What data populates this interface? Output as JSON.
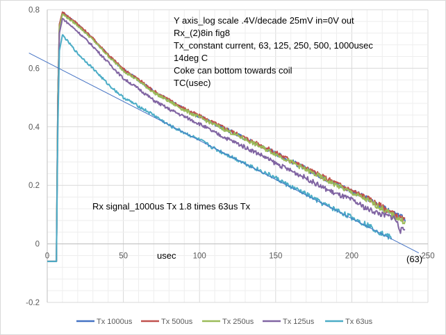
{
  "chart_data": {
    "type": "line",
    "title": "",
    "xlabel": "usec",
    "ylabel": "",
    "xlim": [
      0,
      250
    ],
    "ylim": [
      -0.2,
      0.8
    ],
    "x_ticks": [
      "0",
      "50",
      "100",
      "150",
      "200",
      "250"
    ],
    "x_tick_values": [
      0,
      50,
      100,
      150,
      200,
      250
    ],
    "y_ticks": [
      "-0.2",
      "0",
      "0.2",
      "0.4",
      "0.6",
      "0.8"
    ],
    "y_tick_values": [
      -0.2,
      0,
      0.2,
      0.4,
      0.6,
      0.8
    ],
    "grid": true,
    "legend_position": "bottom",
    "annotations": {
      "notes": [
        "Y axis_log scale .4V/decade 25mV in=0V out",
        "Rx_(2)8in fig8",
        "Tx_constant current, 63, 125, 250, 500, 1000usec",
        "14deg C",
        "Coke can bottom towards coil",
        "TC(usec)"
      ],
      "rx_note": "Rx signal_1000us Tx 1.8 times 63us Tx",
      "trend_label": "(63)"
    },
    "series": [
      {
        "name": "Tx 1000us",
        "color": "#4472c4",
        "offset": 0.0,
        "x": [
          0,
          6,
          7,
          8,
          10,
          20,
          30,
          40,
          50,
          60,
          70,
          80,
          90,
          100,
          110,
          120,
          130,
          140,
          150,
          160,
          170,
          180,
          190,
          200,
          210,
          220,
          230,
          235
        ],
        "y": [
          -0.06,
          -0.06,
          0.5,
          0.75,
          0.79,
          0.75,
          0.7,
          0.645,
          0.595,
          0.56,
          0.52,
          0.49,
          0.46,
          0.435,
          0.41,
          0.385,
          0.36,
          0.335,
          0.31,
          0.283,
          0.256,
          0.23,
          0.205,
          0.18,
          0.155,
          0.125,
          0.095,
          0.085
        ]
      },
      {
        "name": "Tx 500us",
        "color": "#c0504d",
        "offset": 0.0,
        "x": [
          0,
          6,
          7,
          8,
          10,
          20,
          30,
          40,
          50,
          60,
          70,
          80,
          90,
          100,
          110,
          120,
          130,
          140,
          150,
          160,
          170,
          180,
          190,
          200,
          210,
          220,
          230,
          235
        ],
        "y": [
          -0.06,
          -0.06,
          0.5,
          0.75,
          0.792,
          0.752,
          0.702,
          0.647,
          0.597,
          0.562,
          0.522,
          0.492,
          0.462,
          0.437,
          0.412,
          0.387,
          0.362,
          0.337,
          0.312,
          0.285,
          0.258,
          0.232,
          0.207,
          0.182,
          0.157,
          0.127,
          0.093,
          0.08
        ]
      },
      {
        "name": "Tx 250us",
        "color": "#9bbb59",
        "offset": 0.0,
        "x": [
          0,
          6,
          7,
          8,
          10,
          20,
          30,
          40,
          50,
          60,
          70,
          80,
          90,
          100,
          110,
          120,
          130,
          140,
          150,
          160,
          170,
          180,
          190,
          200,
          210,
          220,
          230,
          235
        ],
        "y": [
          -0.06,
          -0.06,
          0.5,
          0.74,
          0.785,
          0.746,
          0.697,
          0.642,
          0.592,
          0.557,
          0.517,
          0.487,
          0.457,
          0.432,
          0.407,
          0.382,
          0.357,
          0.332,
          0.307,
          0.28,
          0.253,
          0.227,
          0.2,
          0.175,
          0.15,
          0.12,
          0.088,
          0.075
        ]
      },
      {
        "name": "Tx 125us",
        "color": "#8064a2",
        "offset": 0.0,
        "x": [
          0,
          6,
          7,
          8,
          10,
          20,
          30,
          40,
          50,
          60,
          70,
          80,
          90,
          100,
          110,
          120,
          130,
          140,
          150,
          160,
          170,
          180,
          190,
          200,
          210,
          220,
          228,
          230,
          232,
          235
        ],
        "y": [
          -0.06,
          -0.06,
          0.45,
          0.72,
          0.77,
          0.725,
          0.675,
          0.62,
          0.565,
          0.53,
          0.49,
          0.46,
          0.435,
          0.41,
          0.38,
          0.355,
          0.33,
          0.305,
          0.275,
          0.25,
          0.225,
          0.195,
          0.17,
          0.15,
          0.12,
          0.1,
          0.09,
          0.07,
          0.045,
          0.05
        ]
      },
      {
        "name": "Tx 63us",
        "color": "#4bacc6",
        "offset": 0.0,
        "x": [
          0,
          6,
          7,
          8,
          10,
          20,
          30,
          40,
          50,
          60,
          70,
          80,
          90,
          100,
          110,
          120,
          130,
          140,
          150,
          160,
          170,
          180,
          190,
          200,
          210,
          220,
          226
        ],
        "y": [
          -0.06,
          -0.06,
          0.4,
          0.66,
          0.714,
          0.65,
          0.6,
          0.545,
          0.5,
          0.47,
          0.44,
          0.405,
          0.38,
          0.355,
          0.325,
          0.3,
          0.275,
          0.25,
          0.225,
          0.195,
          0.17,
          0.14,
          0.115,
          0.09,
          0.065,
          0.035,
          0.02
        ]
      }
    ],
    "trendline": {
      "series": "Tx 63us",
      "color": "#4472c4",
      "x": [
        -12,
        244
      ],
      "y": [
        0.652,
        -0.031
      ]
    }
  }
}
